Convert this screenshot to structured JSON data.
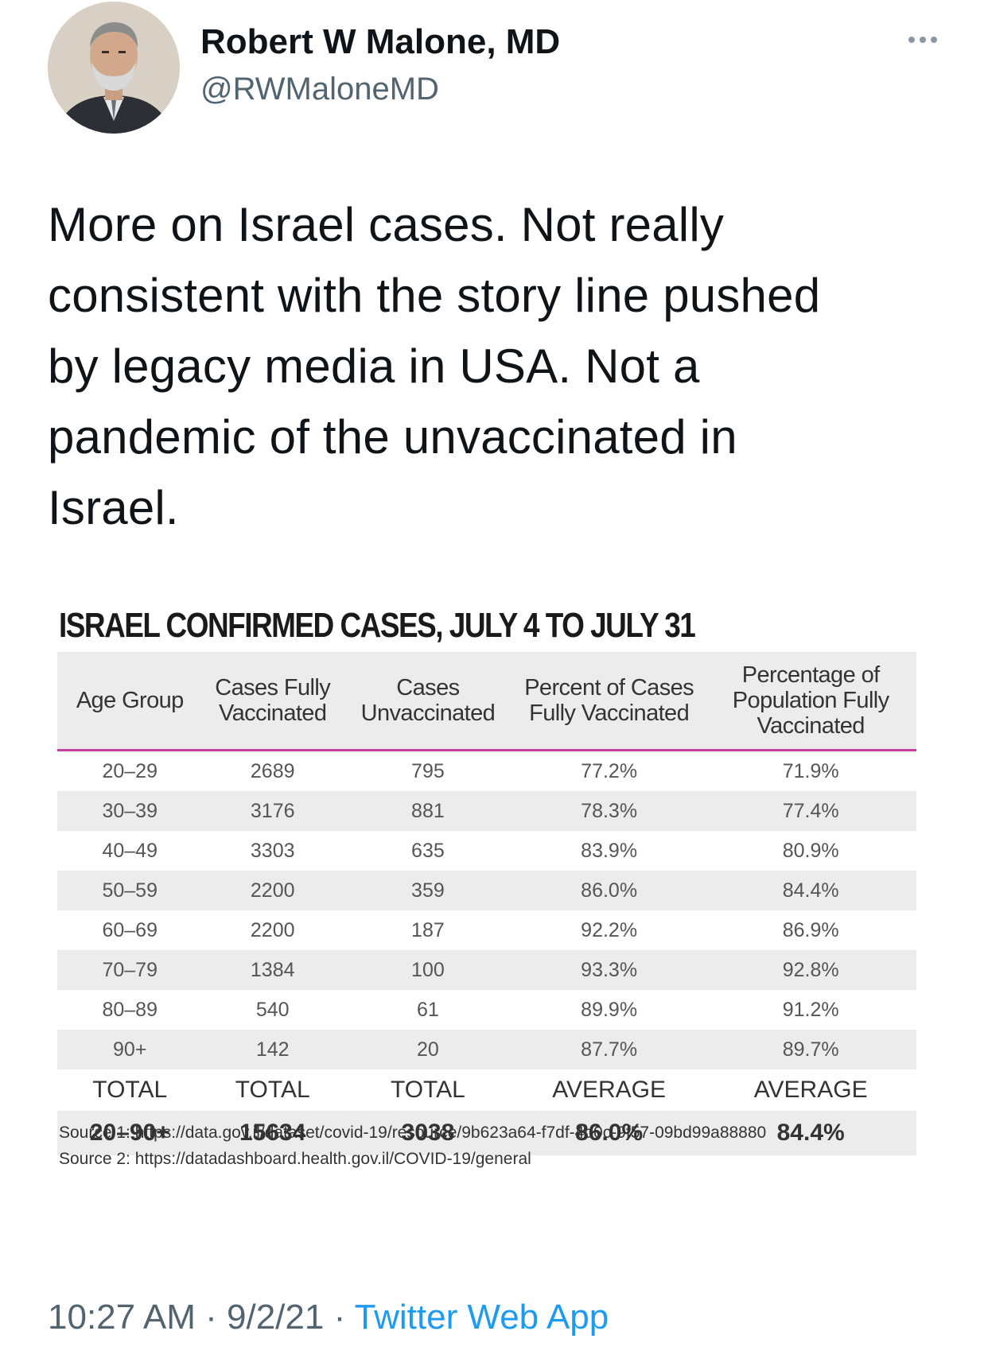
{
  "author": {
    "display_name": "Robert W Malone, MD",
    "handle": "@RWMaloneMD"
  },
  "tweet": {
    "text": "More on Israel cases.  Not really\nconsistent with the story line pushed\nby legacy media in USA.  Not a\npandemic of the unvaccinated in\nIsrael."
  },
  "media": {
    "title": "ISRAEL CONFIRMED CASES, JULY 4 TO JULY 31",
    "headers": [
      "Age Group",
      "Cases Fully Vaccinated",
      "Cases Unvaccinated",
      "Percent of Cases Fully Vaccinated",
      "Percentage of Population Fully Vaccinated"
    ],
    "rows": [
      [
        "20–29",
        "2689",
        "795",
        "77.2%",
        "71.9%"
      ],
      [
        "30–39",
        "3176",
        "881",
        "78.3%",
        "77.4%"
      ],
      [
        "40–49",
        "3303",
        "635",
        "83.9%",
        "80.9%"
      ],
      [
        "50–59",
        "2200",
        "359",
        "86.0%",
        "84.4%"
      ],
      [
        "60–69",
        "2200",
        "187",
        "92.2%",
        "86.9%"
      ],
      [
        "70–79",
        "1384",
        "100",
        "93.3%",
        "92.8%"
      ],
      [
        "80–89",
        "540",
        "61",
        "89.9%",
        "91.2%"
      ],
      [
        "90+",
        "142",
        "20",
        "87.7%",
        "89.7%"
      ]
    ],
    "total_labels": [
      "TOTAL",
      "TOTAL",
      "TOTAL",
      "AVERAGE",
      "AVERAGE"
    ],
    "total_values": [
      "20–90+",
      "15634",
      "3038",
      "86.0%",
      "84.4%"
    ],
    "sources": [
      "Source 1: https://data.gov.il/dataset/covid-19/resource/9b623a64-f7df-4d0c-9f57-09bd99a88880",
      "Source 2: https://datadashboard.health.gov.il/COVID-19/general"
    ]
  },
  "footer": {
    "time": "10:27 AM",
    "separator": " · ",
    "date": "9/2/21",
    "source_app": "Twitter Web App"
  },
  "colors": {
    "accent": "#1d9bf0",
    "header_rule": "#c83fa2",
    "row_shade": "#ececec"
  },
  "icons": {
    "more": "more-horizontal-icon",
    "avatar": "profile-photo"
  }
}
